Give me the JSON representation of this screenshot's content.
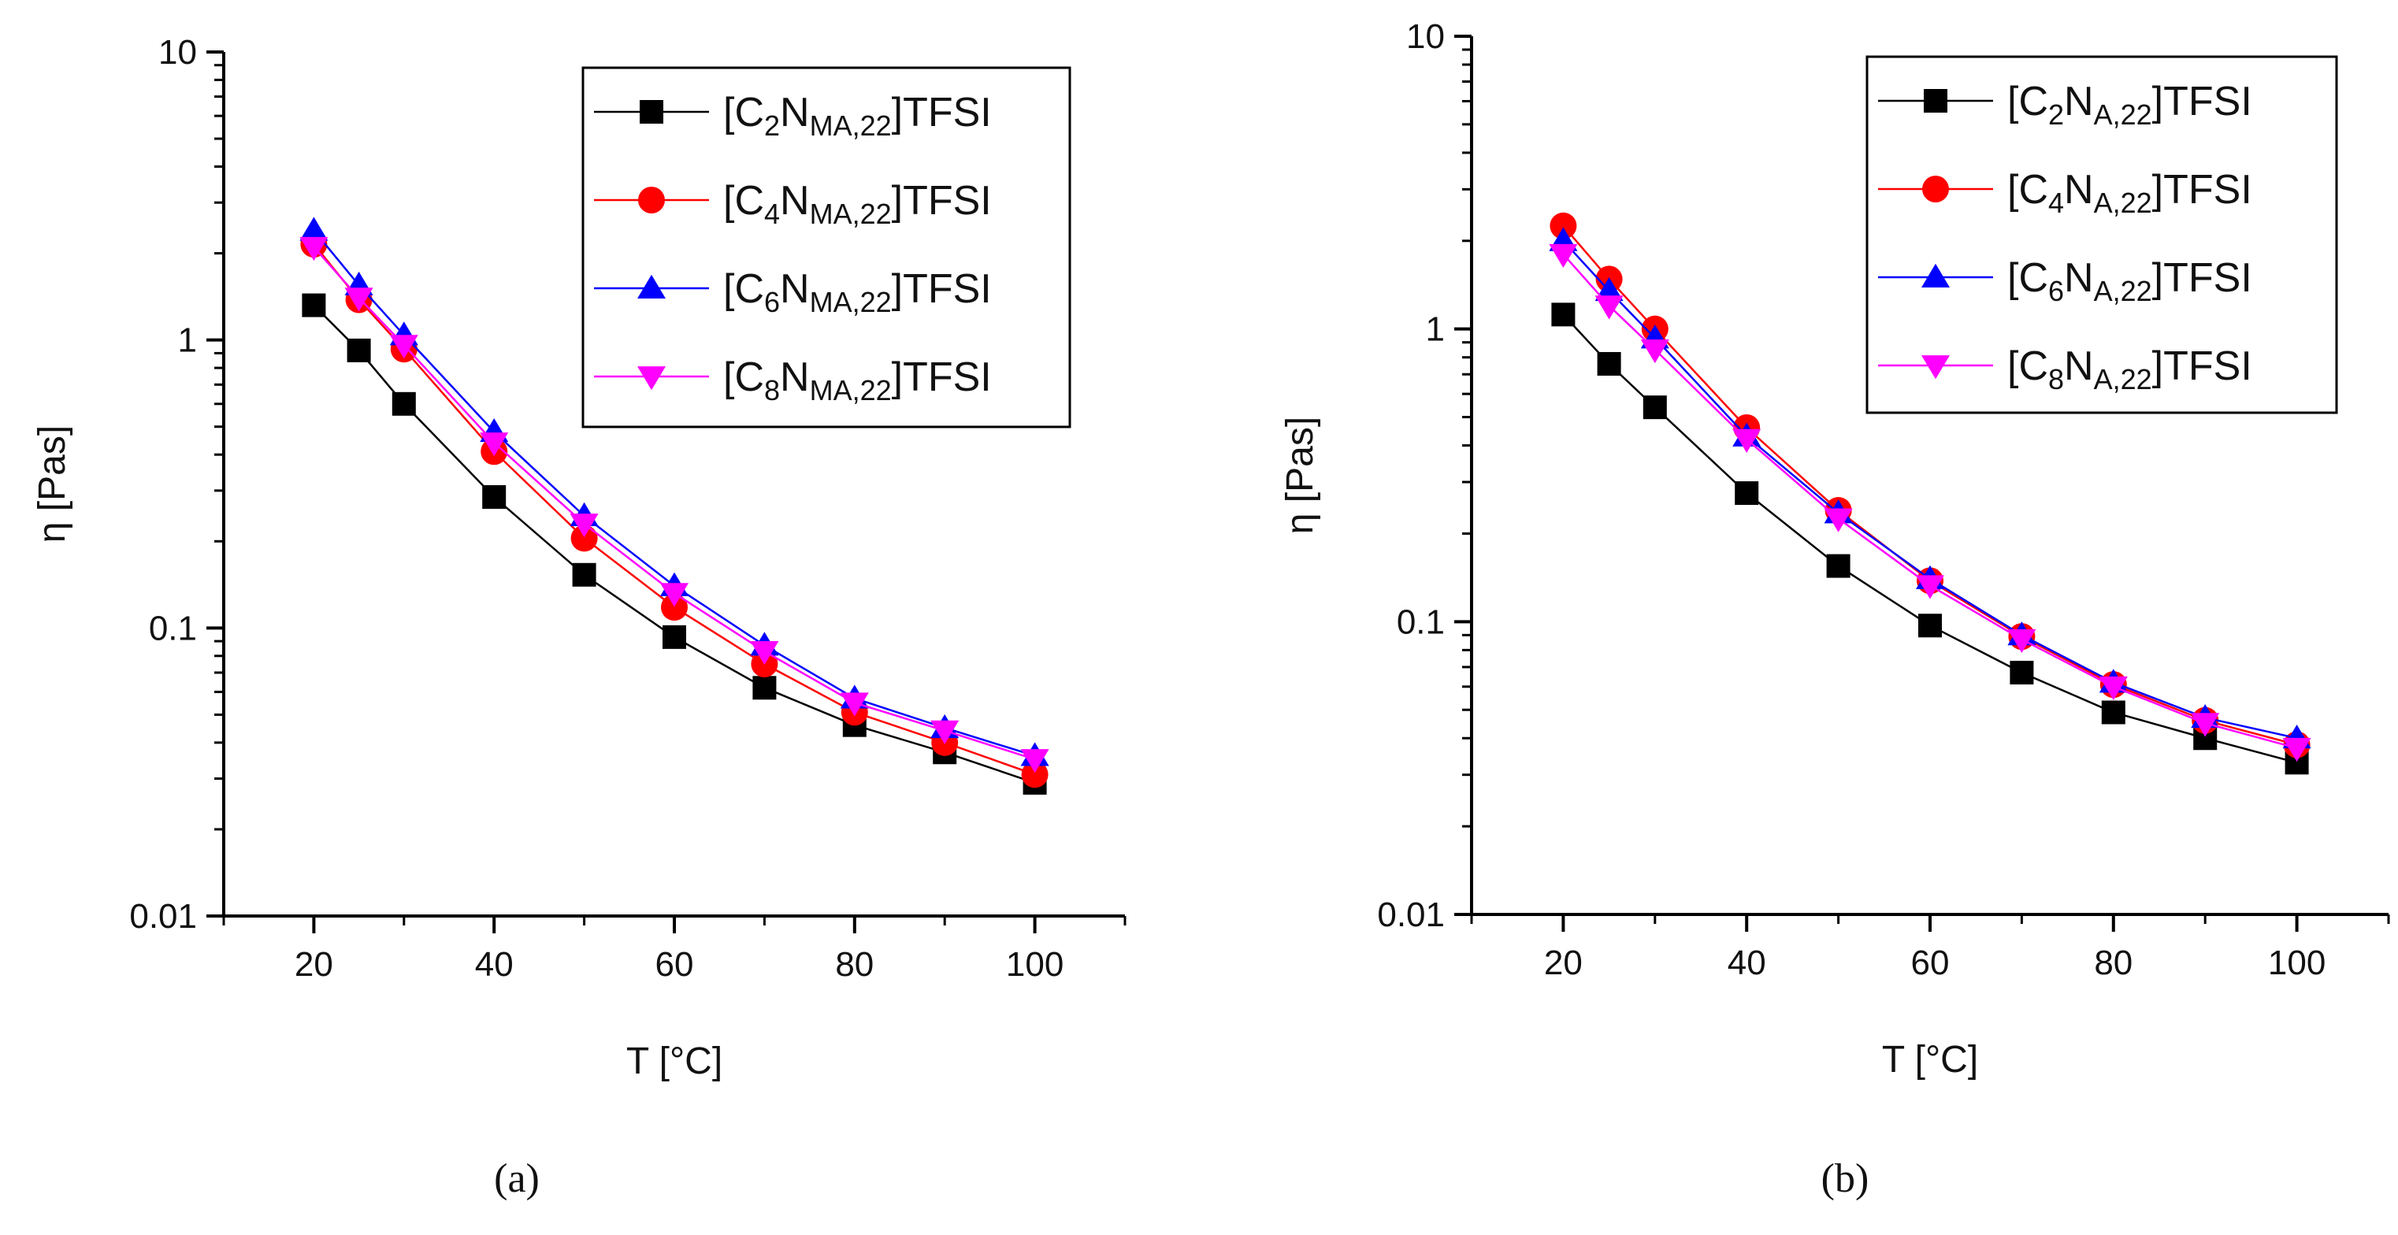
{
  "chart_data": [
    {
      "type": "line",
      "panel_label": "(a)",
      "xlabel": "T [°C]",
      "ylabel": "η [Pas]",
      "yscale": "log",
      "xlim": [
        10,
        110
      ],
      "ylim": [
        0.01,
        10
      ],
      "x_ticks": [
        "20",
        "40",
        "60",
        "80",
        "100"
      ],
      "y_ticks": [
        "0.01",
        "0.1",
        "1",
        "10"
      ],
      "legend_position": "top-right",
      "x": [
        20,
        25,
        30,
        40,
        50,
        60,
        70,
        80,
        90,
        100
      ],
      "series": [
        {
          "name": "[C2NMA,22]TFSI",
          "label_parts": [
            "[C",
            "2",
            "N",
            "MA,22",
            "]TFSI"
          ],
          "color": "#000000",
          "marker": "square",
          "values": [
            1.32,
            0.92,
            0.6,
            0.285,
            0.153,
            0.093,
            0.062,
            0.046,
            0.037,
            0.029
          ]
        },
        {
          "name": "[C4NMA,22]TFSI",
          "label_parts": [
            "[C",
            "4",
            "N",
            "MA,22",
            "]TFSI"
          ],
          "color": "#ff0000",
          "marker": "circle",
          "values": [
            2.15,
            1.38,
            0.93,
            0.41,
            0.205,
            0.118,
            0.075,
            0.051,
            0.04,
            0.031
          ]
        },
        {
          "name": "[C6NMA,22]TFSI",
          "label_parts": [
            "[C",
            "6",
            "N",
            "MA,22",
            "]TFSI"
          ],
          "color": "#0000ff",
          "marker": "triangle-up",
          "values": [
            2.4,
            1.55,
            1.04,
            0.48,
            0.245,
            0.14,
            0.087,
            0.057,
            0.045,
            0.036
          ]
        },
        {
          "name": "[C8NMA,22]TFSI",
          "label_parts": [
            "[C",
            "8",
            "N",
            "MA,22",
            "]TFSI"
          ],
          "color": "#ff00ff",
          "marker": "triangle-down",
          "values": [
            2.1,
            1.4,
            0.96,
            0.44,
            0.23,
            0.132,
            0.083,
            0.055,
            0.044,
            0.035
          ]
        }
      ]
    },
    {
      "type": "line",
      "panel_label": "(b)",
      "xlabel": "T [°C]",
      "ylabel": "η [Pas]",
      "yscale": "log",
      "xlim": [
        10,
        110
      ],
      "ylim": [
        0.01,
        10
      ],
      "x_ticks": [
        "20",
        "40",
        "60",
        "80",
        "100"
      ],
      "y_ticks": [
        "0.01",
        "0.1",
        "1",
        "10"
      ],
      "legend_position": "top-right",
      "x": [
        20,
        25,
        30,
        40,
        50,
        60,
        70,
        80,
        90,
        100
      ],
      "series": [
        {
          "name": "[C2NA,22]TFSI",
          "label_parts": [
            "[C",
            "2",
            "N",
            "A,22",
            "]TFSI"
          ],
          "color": "#000000",
          "marker": "square",
          "values": [
            1.12,
            0.76,
            0.54,
            0.275,
            0.155,
            0.097,
            0.067,
            0.049,
            0.04,
            0.033
          ]
        },
        {
          "name": "[C4NA,22]TFSI",
          "label_parts": [
            "[C",
            "4",
            "N",
            "A,22",
            "]TFSI"
          ],
          "color": "#ff0000",
          "marker": "circle",
          "values": [
            2.25,
            1.48,
            1.0,
            0.46,
            0.24,
            0.138,
            0.089,
            0.061,
            0.046,
            0.038
          ]
        },
        {
          "name": "[C6NA,22]TFSI",
          "label_parts": [
            "[C",
            "6",
            "N",
            "A,22",
            "]TFSI"
          ],
          "color": "#0000ff",
          "marker": "triangle-up",
          "values": [
            2.0,
            1.35,
            0.93,
            0.43,
            0.235,
            0.14,
            0.09,
            0.062,
            0.047,
            0.04
          ]
        },
        {
          "name": "[C8NA,22]TFSI",
          "label_parts": [
            "[C",
            "8",
            "N",
            "A,22",
            "]TFSI"
          ],
          "color": "#ff00ff",
          "marker": "triangle-down",
          "values": [
            1.8,
            1.2,
            0.85,
            0.42,
            0.225,
            0.133,
            0.087,
            0.06,
            0.045,
            0.037
          ]
        }
      ]
    }
  ]
}
